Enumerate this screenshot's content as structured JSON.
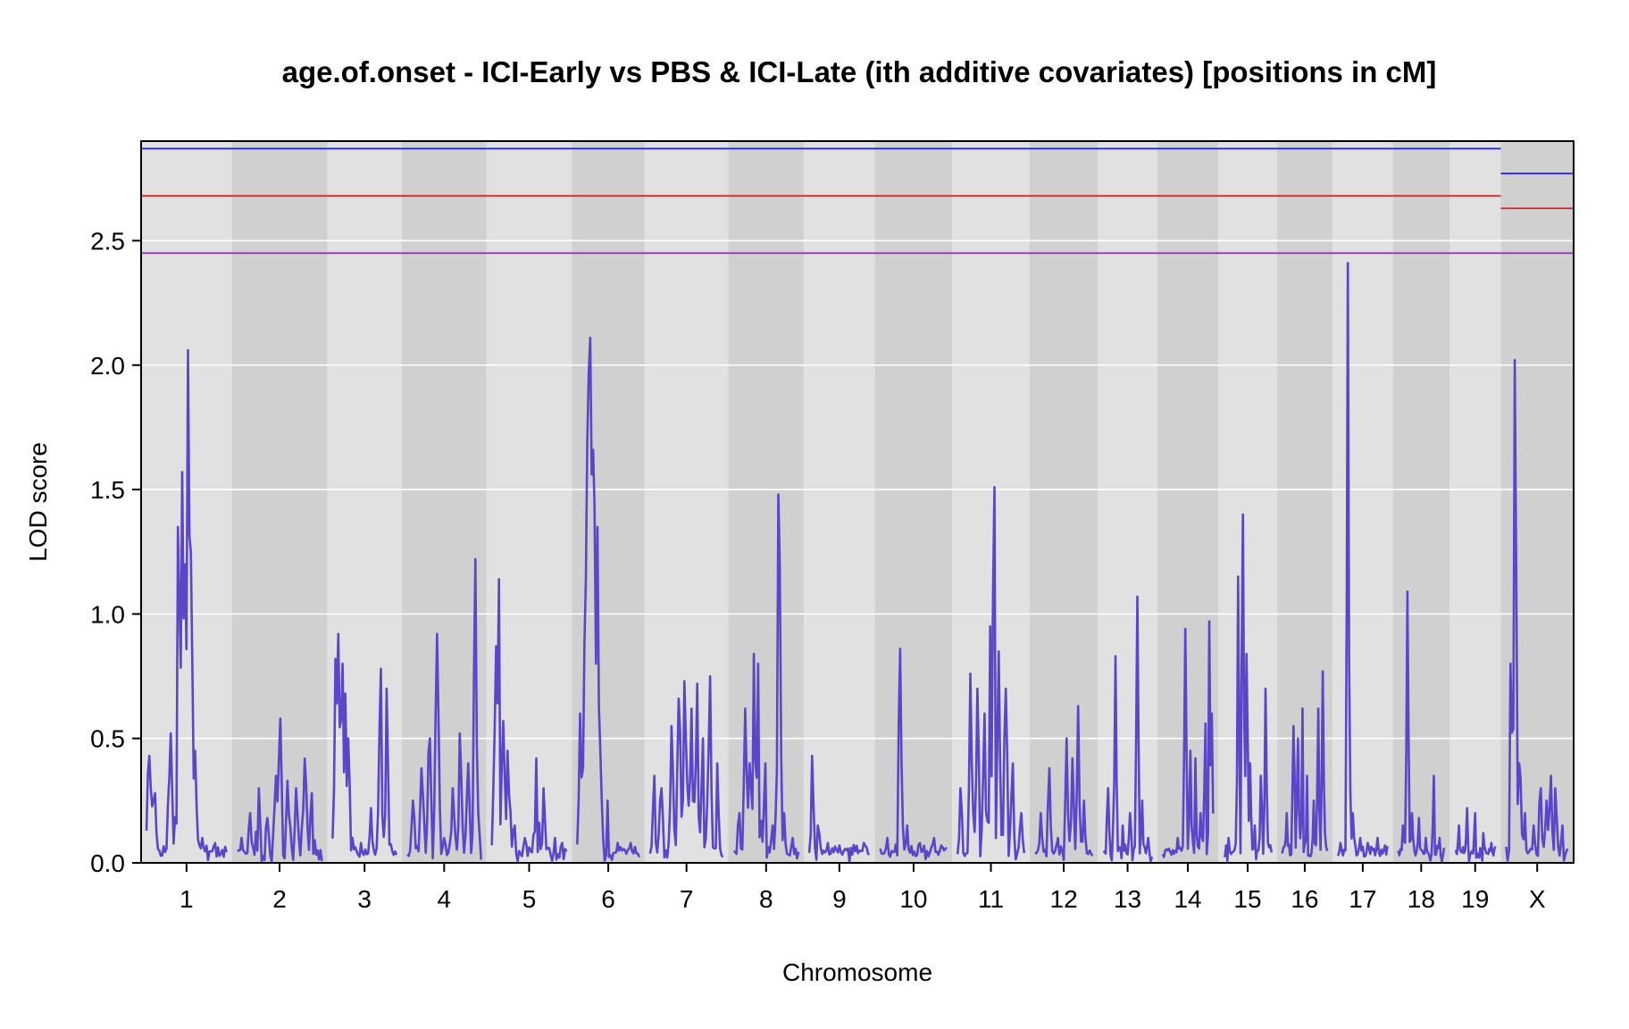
{
  "chart_data": {
    "type": "line",
    "title": "age.of.onset - ICI-Early vs PBS & ICI-Late (ith additive covariates) [positions in cM]",
    "xlabel": "Chromosome",
    "ylabel": "LOD score",
    "ylim": [
      0,
      2.9
    ],
    "yticks": [
      0.0,
      0.5,
      1.0,
      1.5,
      2.0,
      2.5
    ],
    "ytick_labels": [
      "0.0",
      "0.5",
      "1.0",
      "1.5",
      "2.0",
      "2.5"
    ],
    "grid": true,
    "line_color": "#5a46c8",
    "chromosomes": [
      {
        "name": "1",
        "peaks": [
          [
            0.03,
            0.43
          ],
          [
            0.06,
            0.3
          ],
          [
            0.1,
            0.28
          ],
          [
            0.16,
            0.05
          ],
          [
            0.3,
            0.52
          ],
          [
            0.4,
            1.35
          ],
          [
            0.45,
            1.57
          ],
          [
            0.48,
            1.2
          ],
          [
            0.52,
            2.06
          ],
          [
            0.56,
            1.25
          ],
          [
            0.6,
            0.45
          ],
          [
            0.7,
            0.1
          ],
          [
            0.85,
            0.08
          ]
        ]
      },
      {
        "name": "2",
        "peaks": [
          [
            0.05,
            0.1
          ],
          [
            0.15,
            0.2
          ],
          [
            0.25,
            0.3
          ],
          [
            0.35,
            0.18
          ],
          [
            0.45,
            0.35
          ],
          [
            0.5,
            0.58
          ],
          [
            0.6,
            0.33
          ],
          [
            0.7,
            0.3
          ],
          [
            0.8,
            0.42
          ],
          [
            0.88,
            0.28
          ],
          [
            0.95,
            0.05
          ]
        ]
      },
      {
        "name": "3",
        "peaks": [
          [
            0.05,
            0.82
          ],
          [
            0.1,
            0.92
          ],
          [
            0.15,
            0.8
          ],
          [
            0.2,
            0.68
          ],
          [
            0.25,
            0.5
          ],
          [
            0.32,
            0.1
          ],
          [
            0.45,
            0.08
          ],
          [
            0.6,
            0.22
          ],
          [
            0.75,
            0.78
          ],
          [
            0.85,
            0.7
          ]
        ]
      },
      {
        "name": "4",
        "peaks": [
          [
            0.08,
            0.25
          ],
          [
            0.2,
            0.38
          ],
          [
            0.3,
            0.5
          ],
          [
            0.4,
            0.92
          ],
          [
            0.5,
            0.1
          ],
          [
            0.62,
            0.3
          ],
          [
            0.72,
            0.52
          ],
          [
            0.82,
            0.4
          ],
          [
            0.92,
            1.22
          ],
          [
            0.96,
            0.2
          ]
        ]
      },
      {
        "name": "5",
        "peaks": [
          [
            0.05,
            0.87
          ],
          [
            0.1,
            1.14
          ],
          [
            0.15,
            0.57
          ],
          [
            0.22,
            0.45
          ],
          [
            0.3,
            0.15
          ],
          [
            0.45,
            0.1
          ],
          [
            0.6,
            0.42
          ],
          [
            0.7,
            0.3
          ],
          [
            0.85,
            0.1
          ],
          [
            0.95,
            0.08
          ]
        ]
      },
      {
        "name": "6",
        "peaks": [
          [
            0.05,
            0.6
          ],
          [
            0.12,
            0.88
          ],
          [
            0.16,
            1.7
          ],
          [
            0.19,
            1.97
          ],
          [
            0.22,
            2.11
          ],
          [
            0.25,
            1.66
          ],
          [
            0.28,
            1.43
          ],
          [
            0.32,
            1.35
          ],
          [
            0.38,
            0.45
          ],
          [
            0.48,
            0.25
          ],
          [
            0.65,
            0.08
          ],
          [
            0.85,
            0.08
          ]
        ]
      },
      {
        "name": "7",
        "peaks": [
          [
            0.05,
            0.35
          ],
          [
            0.15,
            0.3
          ],
          [
            0.3,
            0.55
          ],
          [
            0.4,
            0.66
          ],
          [
            0.48,
            0.73
          ],
          [
            0.56,
            0.62
          ],
          [
            0.64,
            0.72
          ],
          [
            0.72,
            0.5
          ],
          [
            0.82,
            0.75
          ],
          [
            0.92,
            0.4
          ]
        ]
      },
      {
        "name": "8",
        "peaks": [
          [
            0.08,
            0.2
          ],
          [
            0.18,
            0.62
          ],
          [
            0.25,
            0.4
          ],
          [
            0.32,
            0.84
          ],
          [
            0.38,
            0.8
          ],
          [
            0.48,
            0.4
          ],
          [
            0.6,
            0.15
          ],
          [
            0.7,
            1.48
          ],
          [
            0.78,
            0.2
          ],
          [
            0.9,
            0.1
          ]
        ]
      },
      {
        "name": "9",
        "peaks": [
          [
            0.05,
            0.43
          ],
          [
            0.15,
            0.15
          ],
          [
            0.3,
            0.08
          ],
          [
            0.5,
            0.07
          ],
          [
            0.7,
            0.06
          ],
          [
            0.9,
            0.08
          ]
        ]
      },
      {
        "name": "10",
        "peaks": [
          [
            0.1,
            0.1
          ],
          [
            0.3,
            0.86
          ],
          [
            0.4,
            0.15
          ],
          [
            0.6,
            0.08
          ],
          [
            0.8,
            0.1
          ],
          [
            0.95,
            0.05
          ]
        ]
      },
      {
        "name": "11",
        "peaks": [
          [
            0.05,
            0.3
          ],
          [
            0.2,
            0.76
          ],
          [
            0.3,
            0.7
          ],
          [
            0.4,
            0.6
          ],
          [
            0.48,
            0.95
          ],
          [
            0.55,
            1.51
          ],
          [
            0.62,
            0.85
          ],
          [
            0.72,
            0.7
          ],
          [
            0.82,
            0.4
          ],
          [
            0.95,
            0.2
          ]
        ]
      },
      {
        "name": "12",
        "peaks": [
          [
            0.1,
            0.2
          ],
          [
            0.25,
            0.38
          ],
          [
            0.4,
            0.1
          ],
          [
            0.55,
            0.5
          ],
          [
            0.65,
            0.42
          ],
          [
            0.75,
            0.63
          ],
          [
            0.85,
            0.25
          ],
          [
            0.95,
            0.05
          ]
        ]
      },
      {
        "name": "13",
        "peaks": [
          [
            0.1,
            0.3
          ],
          [
            0.25,
            0.83
          ],
          [
            0.4,
            0.15
          ],
          [
            0.55,
            0.2
          ],
          [
            0.7,
            1.07
          ],
          [
            0.8,
            0.25
          ],
          [
            0.92,
            0.1
          ]
        ]
      },
      {
        "name": "14",
        "peaks": [
          [
            0.1,
            0.05
          ],
          [
            0.3,
            0.1
          ],
          [
            0.45,
            0.94
          ],
          [
            0.55,
            0.45
          ],
          [
            0.65,
            0.42
          ],
          [
            0.75,
            0.2
          ],
          [
            0.85,
            0.56
          ],
          [
            0.92,
            0.97
          ],
          [
            0.97,
            0.6
          ]
        ]
      },
      {
        "name": "15",
        "peaks": [
          [
            0.1,
            0.1
          ],
          [
            0.3,
            1.15
          ],
          [
            0.4,
            1.4
          ],
          [
            0.48,
            0.84
          ],
          [
            0.55,
            0.4
          ],
          [
            0.65,
            0.15
          ],
          [
            0.78,
            0.35
          ],
          [
            0.88,
            0.7
          ]
        ]
      },
      {
        "name": "16",
        "peaks": [
          [
            0.1,
            0.2
          ],
          [
            0.25,
            0.55
          ],
          [
            0.35,
            0.5
          ],
          [
            0.45,
            0.62
          ],
          [
            0.55,
            0.35
          ],
          [
            0.7,
            0.25
          ],
          [
            0.8,
            0.62
          ],
          [
            0.9,
            0.77
          ]
        ]
      },
      {
        "name": "17",
        "peaks": [
          [
            0.05,
            0.08
          ],
          [
            0.15,
            0.05
          ],
          [
            0.2,
            2.41
          ],
          [
            0.3,
            0.2
          ],
          [
            0.45,
            0.1
          ],
          [
            0.6,
            0.08
          ],
          [
            0.8,
            0.1
          ],
          [
            0.95,
            0.07
          ]
        ]
      },
      {
        "name": "18",
        "peaks": [
          [
            0.1,
            0.15
          ],
          [
            0.2,
            1.09
          ],
          [
            0.3,
            0.2
          ],
          [
            0.45,
            0.18
          ],
          [
            0.6,
            0.1
          ],
          [
            0.78,
            0.35
          ],
          [
            0.9,
            0.1
          ]
        ]
      },
      {
        "name": "19",
        "peaks": [
          [
            0.1,
            0.15
          ],
          [
            0.3,
            0.22
          ],
          [
            0.5,
            0.2
          ],
          [
            0.7,
            0.12
          ],
          [
            0.9,
            0.08
          ]
        ]
      },
      {
        "name": "X",
        "peaks": [
          [
            0.05,
            0.05
          ],
          [
            0.08,
            0.8
          ],
          [
            0.15,
            2.02
          ],
          [
            0.22,
            0.4
          ],
          [
            0.3,
            0.2
          ],
          [
            0.45,
            0.15
          ],
          [
            0.55,
            0.3
          ],
          [
            0.65,
            0.25
          ],
          [
            0.72,
            0.35
          ],
          [
            0.8,
            0.3
          ],
          [
            0.9,
            0.15
          ]
        ]
      }
    ],
    "thresholds": {
      "autosomes": [
        {
          "value": 2.87,
          "color": "#1f1fe0"
        },
        {
          "value": 2.68,
          "color": "#e01f1f"
        },
        {
          "value": 2.45,
          "color": "#9a1fd0"
        }
      ],
      "x": [
        {
          "value": 2.77,
          "color": "#1f1fe0"
        },
        {
          "value": 2.63,
          "color": "#e01f1f"
        },
        {
          "value": 2.45,
          "color": "#9a1fd0"
        }
      ]
    }
  }
}
